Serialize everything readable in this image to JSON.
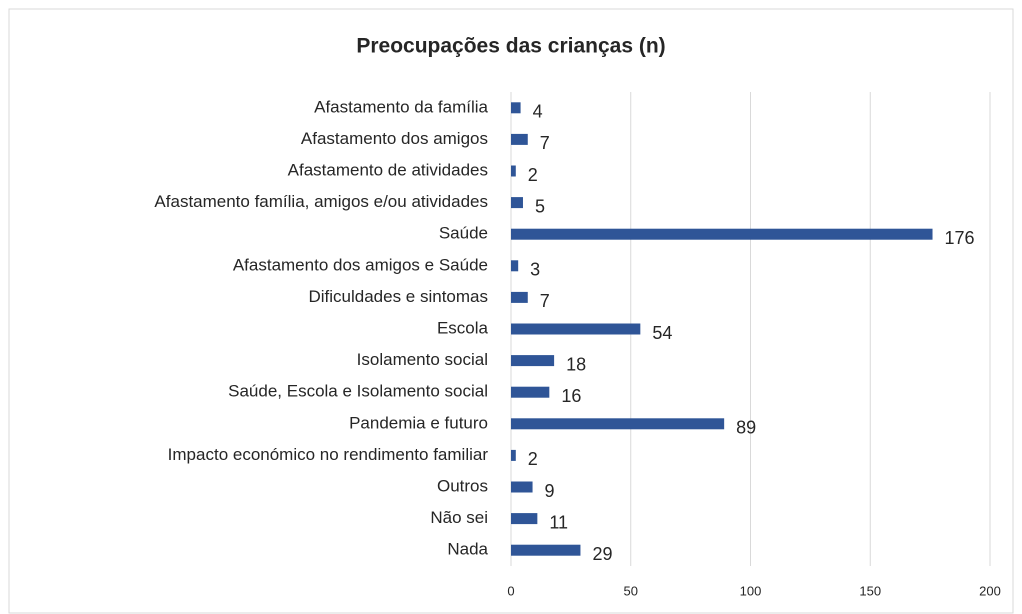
{
  "chart_data": {
    "type": "bar",
    "orientation": "horizontal",
    "title": "Preocupações das crianças (n)",
    "categories": [
      "Afastamento da família",
      "Afastamento dos amigos",
      "Afastamento de atividades",
      "Afastamento família, amigos e/ou atividades",
      "Saúde",
      "Afastamento dos amigos e Saúde",
      "Dificuldades e sintomas",
      "Escola",
      "Isolamento social",
      "Saúde, Escola e Isolamento social",
      "Pandemia e futuro",
      "Impacto económico no rendimento familiar",
      "Outros",
      "Não sei",
      "Nada"
    ],
    "values": [
      4,
      7,
      2,
      5,
      176,
      3,
      7,
      54,
      18,
      16,
      89,
      2,
      9,
      11,
      29
    ],
    "color": "#2f5597",
    "xlim": [
      0,
      200
    ],
    "xticks": [
      0,
      50,
      100,
      150,
      200
    ],
    "grid": true
  }
}
